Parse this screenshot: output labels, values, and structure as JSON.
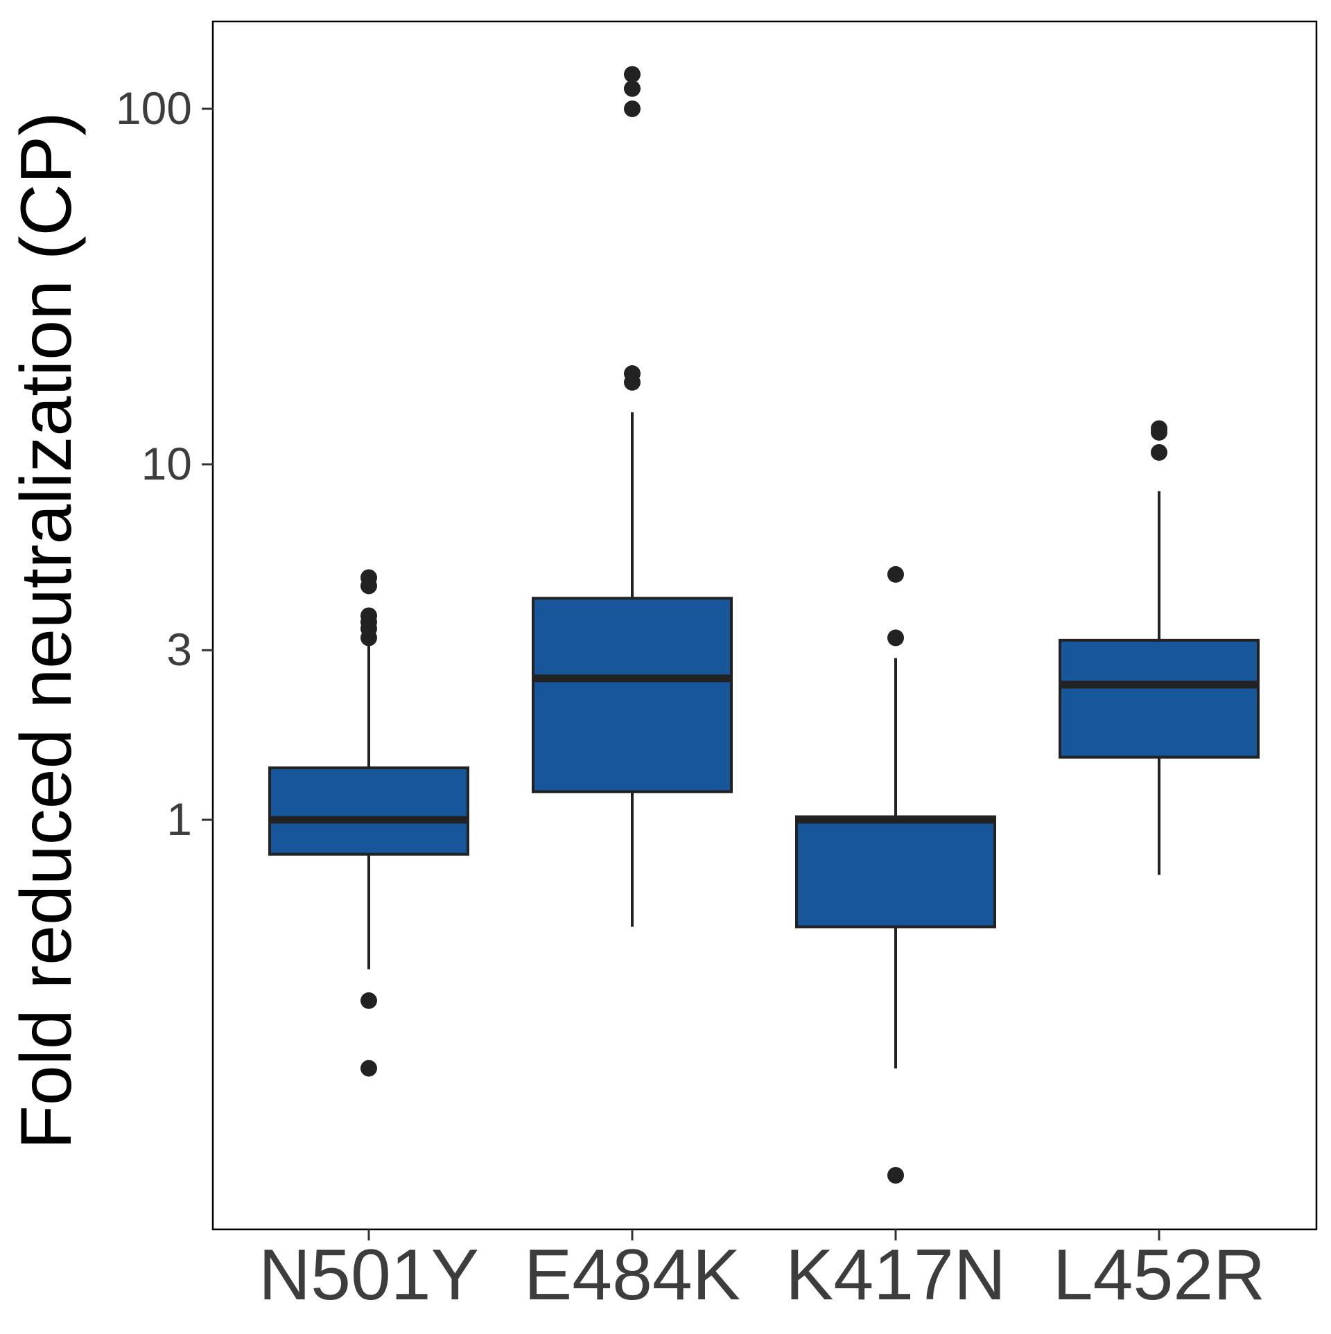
{
  "chart_data": {
    "type": "box",
    "ylabel": "Fold reduced neutralization (CP)",
    "xlabel": "",
    "y_scale": "log10",
    "ylim": [
      0.065,
      200
    ],
    "yticks": [
      1,
      3,
      10,
      100
    ],
    "ytick_labels": [
      "1",
      "3",
      "10",
      "100"
    ],
    "categories": [
      "N501Y",
      "E484K",
      "K417N",
      "L452R"
    ],
    "box_color": "#17569b",
    "line_color": "#222222",
    "grid": false,
    "boxes": [
      {
        "label": "N501Y",
        "whisker_low": 0.38,
        "q1": 0.8,
        "median": 1.0,
        "q3": 1.4,
        "whisker_high": 3.1,
        "outliers": [
          0.2,
          0.31,
          3.25,
          3.45,
          3.6,
          3.75,
          4.55,
          4.8
        ]
      },
      {
        "label": "E484K",
        "whisker_low": 0.5,
        "q1": 1.2,
        "median": 2.5,
        "q3": 4.2,
        "whisker_high": 14,
        "outliers": [
          100,
          114,
          125,
          17,
          18
        ]
      },
      {
        "label": "K417N",
        "whisker_low": 0.2,
        "q1": 0.5,
        "median": 1.0,
        "q3": 1.02,
        "whisker_high": 2.85,
        "outliers": [
          0.1,
          3.25,
          4.9
        ]
      },
      {
        "label": "L452R",
        "whisker_low": 0.7,
        "q1": 1.5,
        "median": 2.4,
        "q3": 3.2,
        "whisker_high": 8.4,
        "outliers": [
          10.8,
          12.3,
          12.6
        ]
      }
    ]
  }
}
